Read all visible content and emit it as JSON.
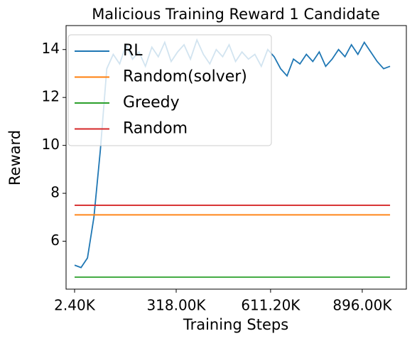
{
  "chart_data": {
    "type": "line",
    "title": "Malicious Training Reward 1 Candidate",
    "xlabel": "Training Steps",
    "ylabel": "Reward",
    "xlim": [
      -24100,
      1033000
    ],
    "ylim": [
      4,
      15
    ],
    "xticks": [
      {
        "value": 2400,
        "label": "2.40K"
      },
      {
        "value": 318000,
        "label": "318.00K"
      },
      {
        "value": 611200,
        "label": "611.20K"
      },
      {
        "value": 896000,
        "label": "896.00K"
      }
    ],
    "yticks": [
      6,
      8,
      10,
      12,
      14
    ],
    "legend": "upper left",
    "series": [
      {
        "name": "RL",
        "color": "#1f77b4",
        "x": [
          2400,
          22400,
          42400,
          62400,
          82400,
          102400,
          122400,
          142400,
          162400,
          182400,
          202400,
          222400,
          242400,
          262400,
          282400,
          302400,
          322400,
          342400,
          362400,
          382400,
          402400,
          422400,
          442400,
          462400,
          482400,
          502400,
          522400,
          542400,
          562400,
          582400,
          602400,
          622400,
          642400,
          662400,
          682400,
          702400,
          722400,
          742400,
          762400,
          782400,
          802400,
          822400,
          842400,
          862400,
          882400,
          902400,
          922400,
          942400,
          962400,
          982400
        ],
        "values": [
          5.0,
          4.9,
          5.3,
          7.0,
          9.8,
          13.2,
          13.8,
          13.4,
          14.2,
          13.6,
          13.9,
          13.3,
          14.1,
          13.7,
          14.3,
          13.5,
          13.9,
          14.2,
          13.6,
          14.4,
          13.8,
          13.4,
          14.0,
          13.7,
          14.2,
          13.5,
          13.9,
          13.6,
          13.8,
          13.3,
          14.0,
          13.7,
          13.2,
          12.9,
          13.6,
          13.4,
          13.8,
          13.5,
          13.9,
          13.3,
          13.6,
          14.0,
          13.7,
          14.2,
          13.8,
          14.3,
          13.9,
          13.5,
          13.2,
          13.3
        ]
      },
      {
        "name": "Random(solver)",
        "color": "#ff7f0e",
        "x": [
          2400,
          982400
        ],
        "values": [
          7.1,
          7.1
        ]
      },
      {
        "name": "Greedy",
        "color": "#2ca02c",
        "x": [
          2400,
          982400
        ],
        "values": [
          4.5,
          4.5
        ]
      },
      {
        "name": "Random",
        "color": "#d62728",
        "x": [
          2400,
          982400
        ],
        "values": [
          7.5,
          7.5
        ]
      }
    ]
  }
}
